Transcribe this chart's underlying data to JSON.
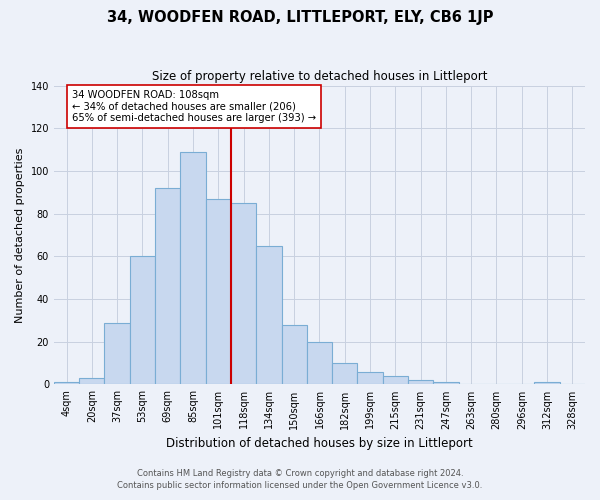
{
  "title": "34, WOODFEN ROAD, LITTLEPORT, ELY, CB6 1JP",
  "subtitle": "Size of property relative to detached houses in Littleport",
  "xlabel": "Distribution of detached houses by size in Littleport",
  "ylabel": "Number of detached properties",
  "bar_labels": [
    "4sqm",
    "20sqm",
    "37sqm",
    "53sqm",
    "69sqm",
    "85sqm",
    "101sqm",
    "118sqm",
    "134sqm",
    "150sqm",
    "166sqm",
    "182sqm",
    "199sqm",
    "215sqm",
    "231sqm",
    "247sqm",
    "263sqm",
    "280sqm",
    "296sqm",
    "312sqm",
    "328sqm"
  ],
  "bar_values": [
    1,
    3,
    29,
    60,
    92,
    109,
    87,
    85,
    65,
    28,
    20,
    10,
    6,
    4,
    2,
    1,
    0,
    0,
    0,
    1,
    0
  ],
  "bar_color": "#c8d8ef",
  "bar_edge_color": "#7aadd4",
  "vline_bar_index": 6,
  "vline_color": "#cc0000",
  "annotation_text": "34 WOODFEN ROAD: 108sqm\n← 34% of detached houses are smaller (206)\n65% of semi-detached houses are larger (393) →",
  "annotation_box_color": "#ffffff",
  "annotation_box_edge": "#cc0000",
  "ylim": [
    0,
    140
  ],
  "yticks": [
    0,
    20,
    40,
    60,
    80,
    100,
    120,
    140
  ],
  "grid_color": "#c8d0e0",
  "bg_color": "#edf1f9",
  "footer_line1": "Contains HM Land Registry data © Crown copyright and database right 2024.",
  "footer_line2": "Contains public sector information licensed under the Open Government Licence v3.0."
}
